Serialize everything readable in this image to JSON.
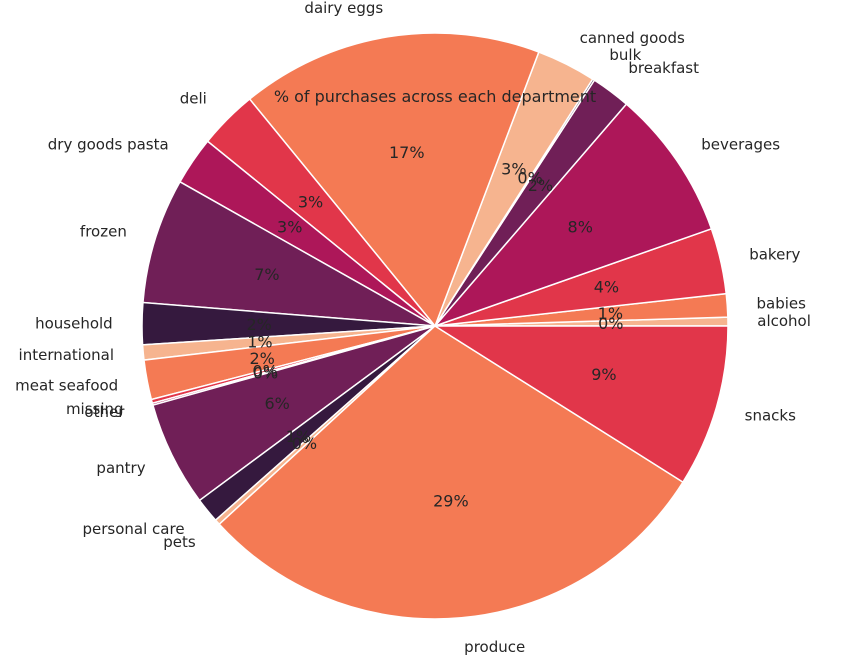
{
  "chart_data": {
    "type": "pie",
    "title": "% of purchases across each department",
    "autopct_format": "%d%%",
    "start_angle_deg": 0,
    "direction": "counterclockwise",
    "palette": [
      "#e1364a",
      "#f47a54",
      "#f6b48f",
      "#701f57",
      "#ad1759",
      "#35193e"
    ],
    "categories": [
      "alcohol",
      "babies",
      "bakery",
      "beverages",
      "breakfast",
      "bulk",
      "canned goods",
      "dairy eggs",
      "deli",
      "dry goods pasta",
      "frozen",
      "household",
      "international",
      "meat seafood",
      "missing",
      "other",
      "pantry",
      "personal care",
      "pets",
      "produce",
      "snacks"
    ],
    "values": [
      0.48,
      1.28,
      3.62,
      8.29,
      2.17,
      0.11,
      3.28,
      16.66,
      3.24,
      2.67,
      6.91,
      2.3,
      0.83,
      2.18,
      0.21,
      0.11,
      5.79,
      1.38,
      0.3,
      29.22,
      8.94
    ],
    "pct_labels": [
      "0%",
      "1%",
      "4%",
      "8%",
      "2%",
      "0%",
      "3%",
      "17%",
      "3%",
      "3%",
      "7%",
      "2%",
      "1%",
      "2%",
      "0%",
      "0%",
      "6%",
      "1%",
      "0%",
      "29%",
      "9%"
    ],
    "colors": [
      "#f6b48f",
      "#f47a54",
      "#e1364a",
      "#ad1759",
      "#701f57",
      "#35193e",
      "#f6b48f",
      "#f47a54",
      "#e1364a",
      "#ad1759",
      "#701f57",
      "#35193e",
      "#f6b48f",
      "#f47a54",
      "#e1364a",
      "#ad1759",
      "#701f57",
      "#35193e",
      "#f6b48f",
      "#f47a54",
      "#e1364a"
    ]
  }
}
